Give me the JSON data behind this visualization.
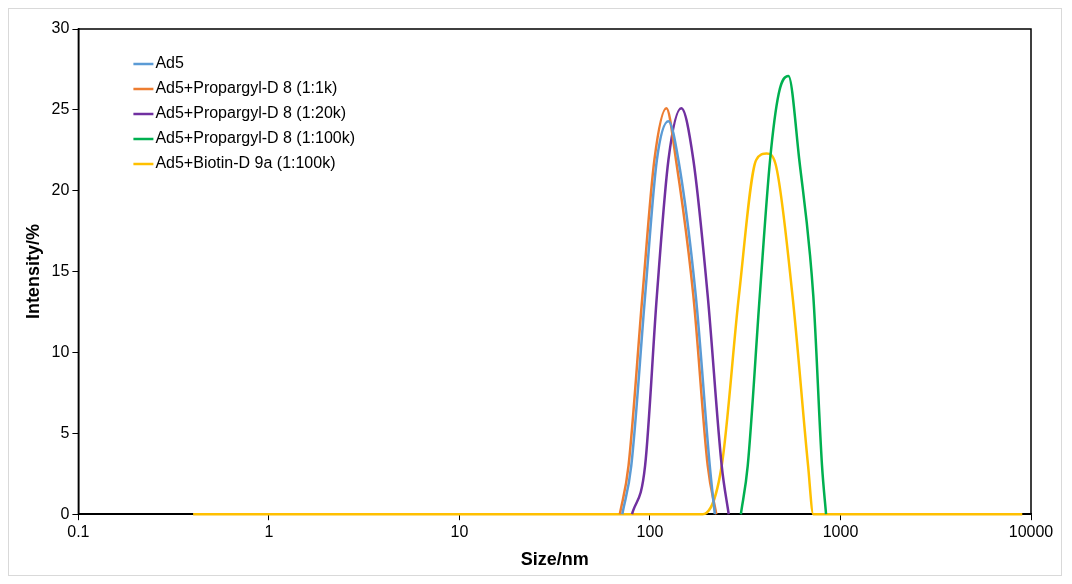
{
  "chart_data": {
    "type": "line",
    "xlabel": "Size/nm",
    "ylabel": "Intensity/%",
    "log": "x",
    "xlim": [
      0.1,
      10000
    ],
    "xticks": [
      0.1,
      1,
      10,
      100,
      1000,
      10000
    ],
    "ylim": [
      0,
      30
    ],
    "yticks": [
      0,
      5,
      10,
      15,
      20,
      25,
      30
    ],
    "grid": false,
    "legend": "top left",
    "marker": "none",
    "line_style": "solid",
    "series": [
      {
        "name": "Ad5",
        "color": "#5b9bd5",
        "x": [
          71.6,
          79.8,
          94.3,
          108.7,
          125,
          141,
          174,
          206,
          219
        ],
        "values": [
          0,
          3,
          13.5,
          21.9,
          24.3,
          21.9,
          13.5,
          3,
          0
        ]
      },
      {
        "name": "Ad5+Propargyl-D 8 (1:1k)",
        "color": "#ed7d31",
        "x": [
          69.5,
          77.2,
          91.3,
          105.5,
          122,
          137,
          169,
          201,
          223
        ],
        "values": [
          0,
          3,
          13.5,
          21.9,
          25.1,
          21.9,
          13.5,
          3,
          0
        ]
      },
      {
        "name": "Ad5+Propargyl-D 8 (1:20k)",
        "color": "#7030a0",
        "x": [
          80.5,
          94.3,
          108.7,
          125,
          146,
          169,
          201,
          238,
          259
        ],
        "values": [
          0,
          3,
          13.5,
          21.9,
          25.1,
          21.9,
          13.5,
          3,
          0
        ]
      },
      {
        "name": "Ad5+Propargyl-D 8 (1:100k)",
        "color": "#00b050",
        "x": [
          300,
          326,
          377,
          427,
          474,
          533,
          608,
          720,
          800,
          840
        ],
        "values": [
          0,
          3,
          13.5,
          21.9,
          26,
          27.1,
          21.9,
          13.5,
          3,
          0
        ]
      },
      {
        "name": "Ad5+Biotin-D 9a (1:100k)",
        "color": "#ffc000",
        "x": [
          0.4,
          189,
          238,
          293,
          361,
          410,
          455,
          560,
          676,
          720,
          9000
        ],
        "values": [
          0,
          0,
          3,
          13.5,
          21.9,
          22.3,
          21.7,
          13.5,
          3,
          0,
          0
        ]
      }
    ]
  }
}
